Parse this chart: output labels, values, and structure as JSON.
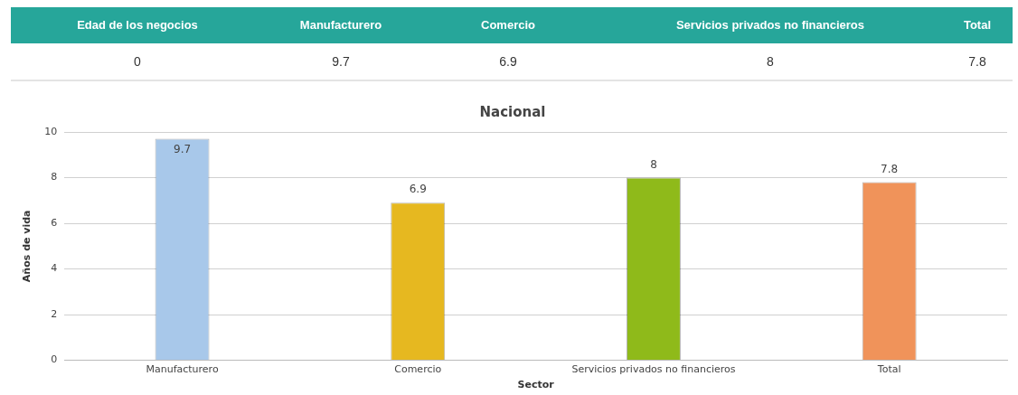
{
  "chart_data": {
    "type": "bar",
    "title": "Nacional",
    "xlabel": "Sector",
    "ylabel": "Años de vida",
    "categories": [
      "Manufacturero",
      "Comercio",
      "Servicios privados no financieros",
      "Total"
    ],
    "values": [
      9.7,
      6.9,
      8,
      7.8
    ],
    "colors": [
      "#a8c8ea",
      "#e6b820",
      "#8fba1a",
      "#f0935a"
    ],
    "ylim": [
      0,
      10
    ],
    "yticks": [
      0,
      2,
      4,
      6,
      8,
      10
    ],
    "grid": "y",
    "legend": false,
    "data_labels": true,
    "annotations": [
      "Edad de los negocios",
      "0",
      "9.7",
      "6.9",
      "8",
      "7.8"
    ]
  }
}
